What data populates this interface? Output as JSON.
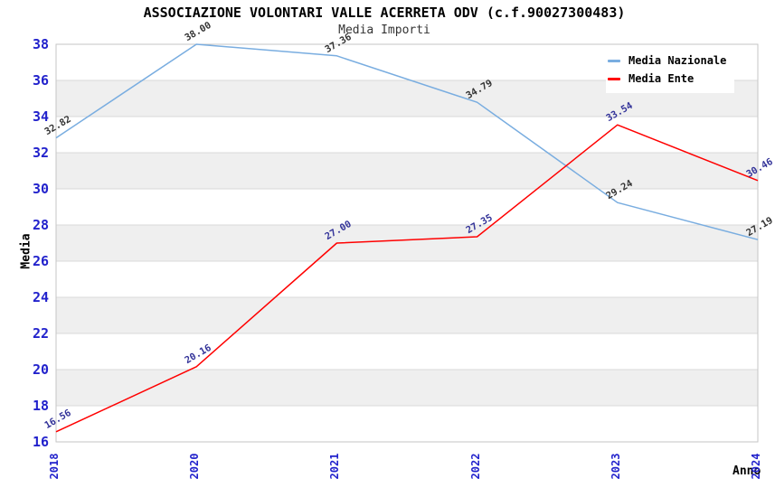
{
  "chart_data": {
    "type": "line",
    "title": "ASSOCIAZIONE VOLONTARI VALLE ACERRETA ODV (c.f.90027300483)",
    "subtitle": "Media Importi",
    "xlabel": "Anno",
    "ylabel": "Media",
    "categories": [
      "2018",
      "2020",
      "2021",
      "2022",
      "2023",
      "2024"
    ],
    "series": [
      {
        "name": "Media Nazionale",
        "color": "#79ade0",
        "label_color": "#333333",
        "values": [
          32.82,
          38.0,
          37.36,
          34.79,
          29.24,
          27.19
        ]
      },
      {
        "name": "Media Ente",
        "color": "#ff0000",
        "label_color": "#333399",
        "values": [
          16.56,
          20.16,
          27.0,
          27.35,
          33.54,
          30.46
        ]
      }
    ],
    "ylim": [
      16,
      38
    ],
    "yticks": [
      16,
      18,
      20,
      22,
      24,
      26,
      28,
      30,
      32,
      34,
      36,
      38
    ],
    "grid": "horizontal",
    "legend_position": "top-right",
    "tick_label_color": "#2222cc",
    "band_colors": [
      "#ffffff",
      "#efefef"
    ],
    "gridline_color": "#d8d8d8",
    "plot_border_color": "#c6c6c6"
  }
}
